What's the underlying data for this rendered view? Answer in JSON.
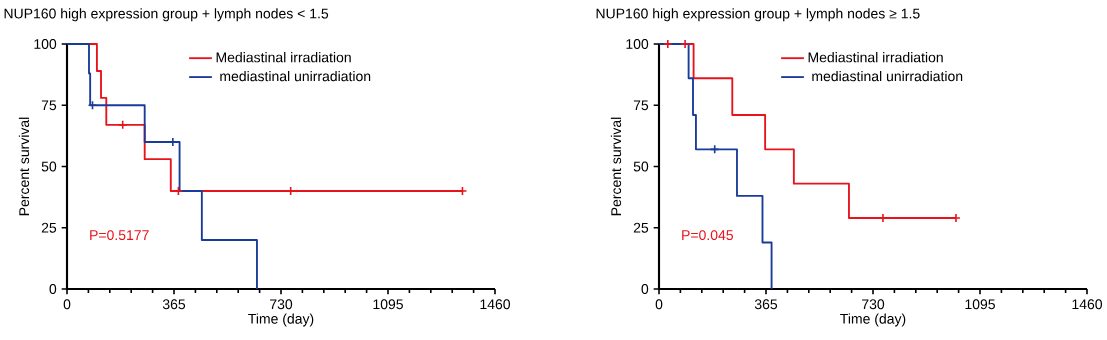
{
  "chart_data": [
    {
      "type": "step",
      "title": "NUP160 high expression group + lymph nodes < 1.5",
      "xlabel": "Time (day)",
      "ylabel": "Percent survival",
      "annotations": [
        "P=0.5177"
      ],
      "xlim": [
        0,
        1460
      ],
      "xticks": [
        0,
        365,
        730,
        1095,
        1460
      ],
      "ylim": [
        0,
        100
      ],
      "yticks": [
        0,
        25,
        50,
        75,
        100
      ],
      "legend": "top",
      "grid": false,
      "series": [
        {
          "name": "Mediastinal irradiation",
          "color": "#e8141c",
          "x": [
            0,
            102,
            116,
            134,
            265,
            354,
            1349
          ],
          "values": [
            100,
            89,
            78,
            67,
            53,
            40,
            40
          ]
        },
        {
          "name": " mediastinal unirradiation",
          "color": "#1a3b9a",
          "x": [
            0,
            75,
            79,
            265,
            384,
            460,
            648
          ],
          "values": [
            100,
            88,
            75,
            60,
            40,
            20,
            0
          ]
        },
        {
          "color": "#e8141c",
          "type": "scatter",
          "marker": "cross",
          "x": [
            190,
            380,
            763,
            1349
          ],
          "values": [
            67,
            40,
            40,
            40
          ]
        },
        {
          "color": "#1a3b9a",
          "type": "scatter",
          "marker": "cross",
          "x": [
            87,
            361
          ],
          "values": [
            75,
            60
          ]
        }
      ]
    },
    {
      "type": "step",
      "title": "NUP160 high expression group + lymph nodes ≥ 1.5",
      "xlabel": "Time (day)",
      "ylabel": "Percent survival",
      "annotations": [
        "P=0.045"
      ],
      "xlim": [
        0,
        1460
      ],
      "xticks": [
        0,
        365,
        730,
        1095,
        1460
      ],
      "ylim": [
        0,
        100
      ],
      "yticks": [
        0,
        25,
        50,
        75,
        100
      ],
      "legend": "top",
      "grid": false,
      "series": [
        {
          "name": "Mediastinal irradiation",
          "color": "#e8141c",
          "x": [
            0,
            118,
            250,
            362,
            460,
            648,
            1013
          ],
          "values": [
            100,
            86,
            71,
            57,
            43,
            29,
            29
          ]
        },
        {
          "name": " mediastinal unirradiation",
          "color": "#1a3b9a",
          "x": [
            0,
            101,
            116,
            126,
            266,
            353,
            384
          ],
          "values": [
            100,
            86,
            71,
            57,
            38,
            19,
            0
          ]
        },
        {
          "color": "#e8141c",
          "type": "scatter",
          "marker": "cross",
          "x": [
            30,
            89,
            764,
            1013
          ],
          "values": [
            100,
            100,
            29,
            29
          ]
        },
        {
          "color": "#1a3b9a",
          "type": "scatter",
          "marker": "cross",
          "x": [
            190
          ],
          "values": [
            57
          ]
        }
      ]
    }
  ]
}
